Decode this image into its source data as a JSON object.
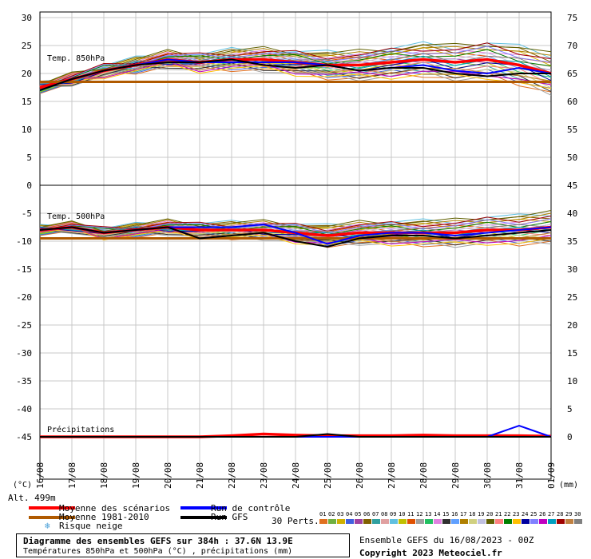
{
  "chart_data": {
    "type": "line",
    "title": "Diagramme des ensembles GEFS sur 384h : 37.6N 13.9E",
    "subtitle": "Températures 850hPa et 500hPa (°C) , précipitations (mm)",
    "y_left_ticks": [
      "30",
      "25",
      "20",
      "15",
      "10",
      "5",
      "0",
      "-5",
      "-10",
      "-15",
      "-20",
      "-25",
      "-30",
      "-35",
      "-40",
      "-45"
    ],
    "y_right_ticks": [
      "75",
      "70",
      "65",
      "60",
      "55",
      "50",
      "45",
      "40",
      "35",
      "30",
      "25",
      "20",
      "15",
      "10",
      "5",
      "0"
    ],
    "y_left_unit": "(°C)",
    "y_right_unit": "(mm)",
    "x_ticks": [
      "16/08",
      "17/08",
      "18/08",
      "19/08",
      "20/08",
      "21/08",
      "22/08",
      "23/08",
      "24/08",
      "25/08",
      "26/08",
      "27/08",
      "28/08",
      "29/08",
      "30/08",
      "31/08",
      "01/09"
    ],
    "ylim": [
      -45,
      30
    ],
    "panels": [
      {
        "label": "Temp. 850hPa",
        "unit": "°C",
        "range": [
          0,
          30
        ]
      },
      {
        "label": "Temp. 500hPa",
        "unit": "°C",
        "range": [
          -45,
          0
        ]
      },
      {
        "label": "Précipitations",
        "unit": "mm",
        "range": [
          0,
          15
        ]
      }
    ],
    "series": [
      {
        "name": "Moyenne des scénarios",
        "color": "#ff0000",
        "t850": [
          17.5,
          19,
          20.5,
          21.5,
          22.5,
          22,
          22.5,
          22.5,
          22,
          21.5,
          21.5,
          22,
          22.5,
          22,
          22.5,
          21.5,
          20
        ],
        "t500": [
          -8,
          -7.5,
          -8.5,
          -8,
          -7.5,
          -8,
          -8,
          -8,
          -8.5,
          -9,
          -8.5,
          -8.5,
          -8.5,
          -8.5,
          -8,
          -8,
          -7.5
        ],
        "precip": [
          0,
          0,
          0,
          0,
          0,
          0,
          0.2,
          0.5,
          0.3,
          0.2,
          0.2,
          0.2,
          0.3,
          0.2,
          0.2,
          0.2,
          0.1
        ]
      },
      {
        "name": "Moyenne 1981-2010",
        "color": "#b05a00",
        "t850": [
          18.5,
          18.5,
          18.5,
          18.5,
          18.5,
          18.5,
          18.5,
          18.5,
          18.5,
          18.5,
          18.5,
          18.5,
          18.5,
          18.5,
          18.5,
          18.5,
          18.5
        ],
        "t500": [
          -9.5,
          -9.5,
          -9.5,
          -9.5,
          -9.5,
          -9.5,
          -9.5,
          -9.5,
          -9.5,
          -9.5,
          -9.5,
          -9.5,
          -9.5,
          -9.5,
          -9.5,
          -9.5,
          -9.5
        ]
      },
      {
        "name": "Run de contrôle",
        "color": "#0000ff",
        "t850": [
          17,
          19,
          20.5,
          21.5,
          22.5,
          22,
          22,
          22,
          22,
          21.5,
          20.5,
          21,
          21.5,
          20.5,
          20,
          21,
          20
        ],
        "t500": [
          -8,
          -7.5,
          -8.5,
          -8,
          -7.5,
          -7.5,
          -7.5,
          -7,
          -8.5,
          -10.5,
          -9,
          -8.5,
          -8.5,
          -9,
          -8.5,
          -8,
          -7.5
        ],
        "precip": [
          0,
          0,
          0,
          0,
          0,
          0,
          0,
          0,
          0,
          0,
          0,
          0,
          0,
          0,
          0,
          2,
          0
        ]
      },
      {
        "name": "Run GFS",
        "color": "#000000",
        "t850": [
          17,
          19,
          20.5,
          21.5,
          22,
          22,
          22.5,
          21.5,
          21,
          21.5,
          20.5,
          21,
          21,
          20,
          19.5,
          20,
          20
        ],
        "t500": [
          -8,
          -7.5,
          -8.5,
          -8,
          -7.5,
          -9.5,
          -9,
          -8.5,
          -10,
          -11,
          -9.5,
          -9,
          -9,
          -9.5,
          -9,
          -8.5,
          -8
        ],
        "precip": [
          0,
          0,
          0,
          0,
          0,
          0,
          0,
          0,
          0,
          0.5,
          0,
          0,
          0,
          0,
          0,
          0,
          0
        ]
      }
    ],
    "legend": "bottom",
    "grid": true
  },
  "legend": {
    "mean": "Moyenne des scénarios",
    "clim": "Moyenne 1981-2010",
    "snow": "Risque neige",
    "control": "Run de contrôle",
    "gfs": "Run GFS",
    "perts": "30 Perts."
  },
  "perturbations": {
    "labels": [
      "01",
      "02",
      "03",
      "04",
      "05",
      "06",
      "07",
      "08",
      "09",
      "10",
      "11",
      "12",
      "13",
      "14",
      "15",
      "16",
      "17",
      "18",
      "19",
      "20",
      "21",
      "22",
      "23",
      "24",
      "25",
      "26",
      "27",
      "28",
      "29",
      "30"
    ],
    "colors": [
      "#e07020",
      "#70b040",
      "#d0b000",
      "#4060e0",
      "#a040a0",
      "#806000",
      "#30a0a0",
      "#e0a0a0",
      "#60c0e0",
      "#c0c000",
      "#e05000",
      "#a0a0a0",
      "#20c060",
      "#e080e0",
      "#303030",
      "#60a0ff",
      "#b08000",
      "#d0d080",
      "#c0c0e0",
      "#606000",
      "#ff8080",
      "#008000",
      "#ffc000",
      "#0000a0",
      "#8080ff",
      "#c000c0",
      "#00a0c0",
      "#a00000",
      "#c08040",
      "#808080"
    ]
  },
  "alt": "Alt. 499m",
  "caption": {
    "line1": "Diagramme des ensembles GEFS sur 384h : 37.6N 13.9E",
    "line2": "Températures 850hPa et 500hPa (°C) , précipitations (mm)"
  },
  "info": {
    "run": "Ensemble GEFS du 16/08/2023 - 00Z",
    "copyright": "Copyright 2023 Meteociel.fr"
  }
}
